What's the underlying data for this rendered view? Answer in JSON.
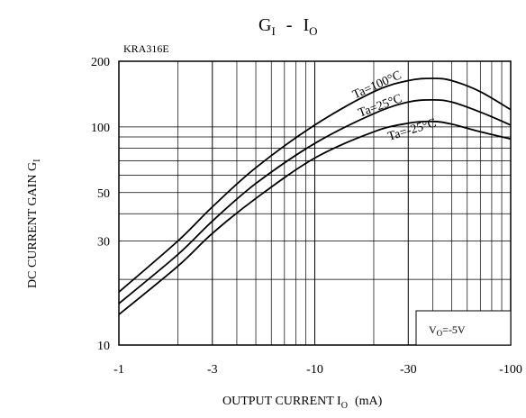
{
  "chart_data": {
    "type": "line",
    "title": {
      "main": "G",
      "main_sub": "I",
      "sep": "-",
      "rhs": "I",
      "rhs_sub": "O"
    },
    "part_number": "KRA316E",
    "xlabel": {
      "text": "OUTPUT CURRENT I",
      "sub": "O",
      "unit": "(mA)"
    },
    "ylabel": {
      "text": "DC CURRENT GAIN G",
      "sub": "I"
    },
    "x_scale": "log",
    "y_scale": "log",
    "xlim": [
      -1,
      -100
    ],
    "ylim": [
      10,
      200
    ],
    "x_ticks": [
      {
        "value": -1,
        "label": "-1"
      },
      {
        "value": -3,
        "label": "-3"
      },
      {
        "value": -10,
        "label": "-10"
      },
      {
        "value": -30,
        "label": "-30"
      },
      {
        "value": -100,
        "label": "-100"
      }
    ],
    "y_ticks": [
      {
        "value": 10,
        "label": "10"
      },
      {
        "value": 30,
        "label": "30"
      },
      {
        "value": 50,
        "label": "50"
      },
      {
        "value": 100,
        "label": "100"
      },
      {
        "value": 200,
        "label": "200"
      }
    ],
    "grid": true,
    "condition": {
      "text": "V",
      "sub": "O",
      "rest": "=-5V"
    },
    "series": [
      {
        "name": "Ta=100°C",
        "x": [
          -1,
          -2,
          -3,
          -5,
          -10,
          -20,
          -30,
          -40,
          -50,
          -70,
          -100
        ],
        "y": [
          17.5,
          30,
          43,
          65,
          102,
          145,
          163,
          167,
          163,
          145,
          120
        ]
      },
      {
        "name": "Ta=25°C",
        "x": [
          -1,
          -2,
          -3,
          -5,
          -10,
          -20,
          -30,
          -40,
          -50,
          -70,
          -100
        ],
        "y": [
          15.5,
          26,
          37,
          55,
          84,
          115,
          130,
          133,
          130,
          117,
          102
        ]
      },
      {
        "name": "Ta=-25°C",
        "x": [
          -1,
          -2,
          -3,
          -5,
          -10,
          -20,
          -30,
          -40,
          -50,
          -70,
          -100
        ],
        "y": [
          13.8,
          23,
          32.5,
          47,
          72,
          95,
          104,
          106,
          103,
          95,
          88
        ]
      }
    ]
  }
}
